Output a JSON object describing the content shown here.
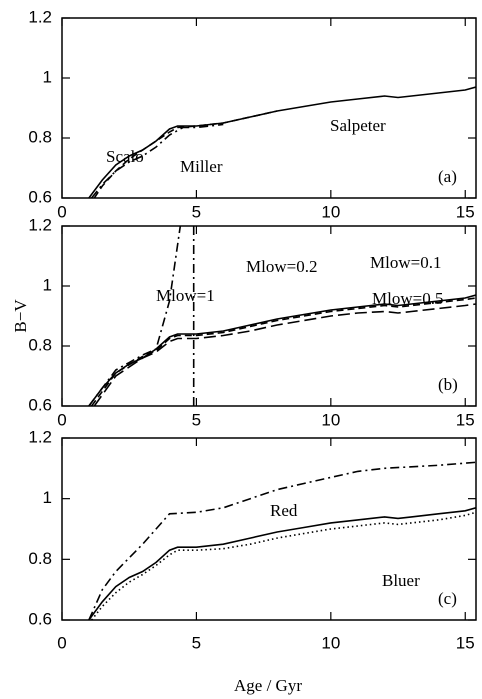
{
  "chart_data": [
    {
      "type": "line",
      "label": "(a)",
      "xlim": [
        0,
        15.4
      ],
      "ylim": [
        0.6,
        1.2
      ],
      "xticks": [
        0,
        5,
        10,
        15
      ],
      "yticks": [
        0.6,
        0.8,
        1,
        1.2
      ],
      "series": [
        {
          "name": "Salpeter",
          "color": "#000",
          "style": "solid",
          "x": [
            1,
            1.5,
            2,
            2.5,
            3,
            3.5,
            4,
            4.3,
            5,
            6,
            7,
            8,
            9,
            10,
            11,
            12,
            12.5,
            13,
            14,
            15,
            15.4
          ],
          "values": [
            0.6,
            0.66,
            0.71,
            0.74,
            0.76,
            0.79,
            0.83,
            0.84,
            0.84,
            0.85,
            0.87,
            0.89,
            0.905,
            0.92,
            0.93,
            0.94,
            0.935,
            0.94,
            0.95,
            0.96,
            0.97
          ]
        },
        {
          "name": "Scalo",
          "color": "#000",
          "style": "dashed",
          "x": [
            1.2,
            1.5,
            2,
            2.5,
            3,
            3.5,
            4,
            4.3,
            5,
            6,
            7,
            8
          ],
          "values": [
            0.6,
            0.64,
            0.69,
            0.73,
            0.76,
            0.79,
            0.82,
            0.835,
            0.84,
            0.85,
            0.87,
            0.89
          ]
        },
        {
          "name": "Miller",
          "color": "#000",
          "style": "dashdot",
          "x": [
            1.1,
            1.5,
            2,
            2.5,
            3,
            3.5,
            4,
            4.5,
            5,
            6
          ],
          "values": [
            0.6,
            0.645,
            0.69,
            0.72,
            0.74,
            0.77,
            0.81,
            0.835,
            0.835,
            0.845
          ]
        }
      ]
    },
    {
      "type": "line",
      "label": "(b)",
      "ylabel": "B−V",
      "xlim": [
        0,
        15.4
      ],
      "ylim": [
        0.6,
        1.2
      ],
      "xticks": [
        0,
        5,
        10,
        15
      ],
      "yticks": [
        0.6,
        0.8,
        1,
        1.2
      ],
      "series": [
        {
          "name": "Mlow=1",
          "color": "#000",
          "style": "dashdot",
          "x": [
            1,
            2,
            3,
            3.5,
            4,
            4.4,
            4.6,
            4.9,
            4.9
          ],
          "values": [
            0.6,
            0.72,
            0.77,
            0.79,
            0.95,
            1.2,
            null,
            1.2,
            0.6
          ]
        },
        {
          "name": "Mlow=0.2",
          "color": "#000",
          "style": "dashed",
          "x": [
            1.1,
            2,
            3,
            3.5,
            4,
            4.3,
            5,
            6,
            7,
            8,
            9,
            10,
            11,
            12,
            12.5,
            13,
            14,
            15,
            15.4
          ],
          "values": [
            0.6,
            0.71,
            0.765,
            0.785,
            0.825,
            0.835,
            0.835,
            0.845,
            0.865,
            0.885,
            0.9,
            0.915,
            0.925,
            0.935,
            0.93,
            0.935,
            0.945,
            0.955,
            0.96
          ]
        },
        {
          "name": "Mlow=0.1",
          "color": "#000",
          "style": "solid",
          "x": [
            1,
            1.5,
            2,
            2.5,
            3,
            3.5,
            4,
            4.3,
            5,
            6,
            7,
            8,
            9,
            10,
            11,
            12,
            12.5,
            13,
            14,
            15,
            15.4
          ],
          "values": [
            0.6,
            0.66,
            0.71,
            0.74,
            0.76,
            0.79,
            0.83,
            0.84,
            0.84,
            0.85,
            0.87,
            0.89,
            0.905,
            0.92,
            0.93,
            0.94,
            0.935,
            0.94,
            0.95,
            0.96,
            0.97
          ]
        },
        {
          "name": "Mlow=0.5",
          "color": "#000",
          "style": "longdash",
          "x": [
            1.2,
            2,
            3,
            3.5,
            4,
            4.3,
            5,
            6,
            7,
            8,
            9,
            10,
            11,
            12,
            12.5,
            13,
            14,
            15,
            15.4
          ],
          "values": [
            0.6,
            0.7,
            0.76,
            0.78,
            0.815,
            0.825,
            0.825,
            0.835,
            0.85,
            0.87,
            0.885,
            0.9,
            0.91,
            0.915,
            0.91,
            0.915,
            0.925,
            0.935,
            0.94
          ]
        }
      ]
    },
    {
      "type": "line",
      "label": "(c)",
      "xlabel": "Age / Gyr",
      "xlim": [
        0,
        15.4
      ],
      "ylim": [
        0.6,
        1.2
      ],
      "xticks": [
        0,
        5,
        10,
        15
      ],
      "yticks": [
        0.6,
        0.8,
        1,
        1.2
      ],
      "series": [
        {
          "name": "Red",
          "color": "#000",
          "style": "dashdot",
          "x": [
            1,
            1.5,
            2,
            3,
            4,
            5,
            6,
            7,
            8,
            9,
            10,
            11,
            12,
            13,
            14,
            15.4
          ],
          "values": [
            0.6,
            0.7,
            0.76,
            0.85,
            0.95,
            0.955,
            0.97,
            1.0,
            1.03,
            1.05,
            1.07,
            1.09,
            1.1,
            1.105,
            1.11,
            1.12
          ]
        },
        {
          "color": "#000",
          "style": "solid",
          "x": [
            1,
            1.5,
            2,
            2.5,
            3,
            3.5,
            4,
            4.3,
            5,
            6,
            7,
            8,
            9,
            10,
            11,
            12,
            12.5,
            13,
            14,
            15,
            15.4
          ],
          "values": [
            0.6,
            0.66,
            0.71,
            0.74,
            0.76,
            0.79,
            0.83,
            0.84,
            0.84,
            0.85,
            0.87,
            0.89,
            0.905,
            0.92,
            0.93,
            0.94,
            0.935,
            0.94,
            0.95,
            0.96,
            0.97
          ]
        },
        {
          "name": "Bluer",
          "color": "#000",
          "style": "dotted",
          "x": [
            1.1,
            1.5,
            2,
            2.5,
            3,
            3.5,
            4,
            4.3,
            5,
            6,
            7,
            8,
            9,
            10,
            11,
            12,
            12.5,
            13,
            14,
            15,
            15.4
          ],
          "values": [
            0.6,
            0.645,
            0.69,
            0.725,
            0.75,
            0.78,
            0.815,
            0.83,
            0.83,
            0.835,
            0.85,
            0.87,
            0.885,
            0.9,
            0.91,
            0.92,
            0.915,
            0.92,
            0.93,
            0.945,
            0.955
          ]
        }
      ]
    }
  ]
}
